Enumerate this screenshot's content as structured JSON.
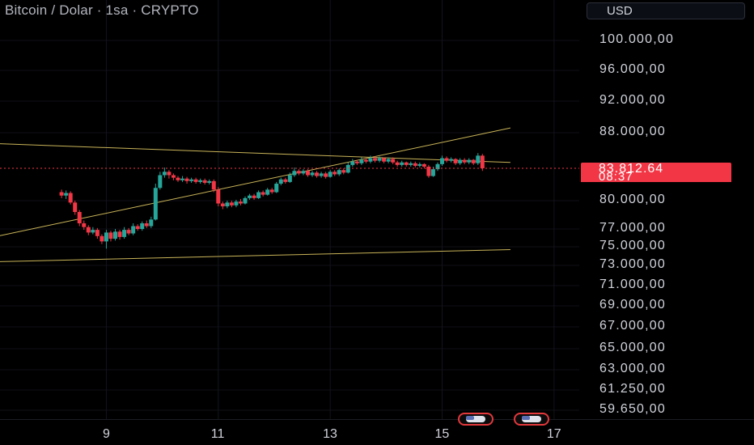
{
  "header": {
    "title": "Bitcoin / Dolar · 1sa · CRYPTO",
    "currency": "USD"
  },
  "current_price": {
    "label": "83.812,64",
    "countdown": "08:37",
    "value": 83812.64,
    "color": "#f23645"
  },
  "colors": {
    "up": "#26a69a",
    "down": "#f23645",
    "trendline": "#c9b458",
    "background": "#000000"
  },
  "events": [
    {
      "icon": "us-flag-icon",
      "x": 15.6
    },
    {
      "icon": "us-flag-icon",
      "x": 16.6
    }
  ],
  "chart_data": {
    "type": "candlestick",
    "y_axis_labels": [
      {
        "label": "100.000,00",
        "value": 100000
      },
      {
        "label": "96.000,00",
        "value": 96000
      },
      {
        "label": "92.000,00",
        "value": 92000
      },
      {
        "label": "88.000,00",
        "value": 88000
      },
      {
        "label": "80.000,00",
        "value": 80000
      },
      {
        "label": "77.000,00",
        "value": 77000
      },
      {
        "label": "75.000,00",
        "value": 75000
      },
      {
        "label": "73.000,00",
        "value": 73000
      },
      {
        "label": "71.000,00",
        "value": 71000
      },
      {
        "label": "69.000,00",
        "value": 69000
      },
      {
        "label": "67.000,00",
        "value": 67000
      },
      {
        "label": "65.000,00",
        "value": 65000
      },
      {
        "label": "63.000,00",
        "value": 63000
      },
      {
        "label": "61.250,00",
        "value": 61250
      },
      {
        "label": "59.650,00",
        "value": 59650
      }
    ],
    "x_axis_labels": [
      {
        "label": "9",
        "value": 9
      },
      {
        "label": "11",
        "value": 11
      },
      {
        "label": "13",
        "value": 13
      },
      {
        "label": "15",
        "value": 15
      },
      {
        "label": "17",
        "value": 17
      }
    ],
    "price_line": 83812.64,
    "candles": [
      [
        8.2,
        81000,
        80600,
        81300,
        80300
      ],
      [
        8.28,
        80600,
        80900,
        81200,
        80200
      ],
      [
        8.36,
        80900,
        79800,
        81100,
        79600
      ],
      [
        8.44,
        79800,
        78800,
        80000,
        78500
      ],
      [
        8.52,
        78800,
        77600,
        79000,
        77300
      ],
      [
        8.6,
        77600,
        77200,
        77900,
        76900
      ],
      [
        8.68,
        77200,
        76600,
        77400,
        76300
      ],
      [
        8.76,
        76600,
        76900,
        77200,
        76400
      ],
      [
        8.84,
        76900,
        76200,
        77100,
        75900
      ],
      [
        8.92,
        76200,
        75600,
        76400,
        75300
      ],
      [
        9.0,
        75600,
        76600,
        76900,
        74800
      ],
      [
        9.08,
        76600,
        75900,
        76800,
        75600
      ],
      [
        9.16,
        75900,
        76700,
        77000,
        75700
      ],
      [
        9.24,
        76700,
        76100,
        76900,
        75800
      ],
      [
        9.32,
        76100,
        76900,
        77200,
        75900
      ],
      [
        9.4,
        76900,
        76500,
        77100,
        76300
      ],
      [
        9.48,
        76500,
        77300,
        77600,
        76300
      ],
      [
        9.56,
        77300,
        77000,
        77500,
        76800
      ],
      [
        9.64,
        77000,
        77600,
        77800,
        76800
      ],
      [
        9.72,
        77600,
        77300,
        77900,
        77100
      ],
      [
        9.8,
        77300,
        78000,
        78300,
        77100
      ],
      [
        9.88,
        78000,
        81500,
        82000,
        77900
      ],
      [
        9.96,
        81500,
        83000,
        83400,
        81300
      ],
      [
        10.04,
        83000,
        83400,
        83900,
        82700
      ],
      [
        10.12,
        83400,
        83000,
        83600,
        82600
      ],
      [
        10.2,
        83000,
        82700,
        83200,
        82400
      ],
      [
        10.28,
        82700,
        82400,
        82900,
        82200
      ],
      [
        10.36,
        82400,
        82600,
        82900,
        82200
      ],
      [
        10.44,
        82600,
        82300,
        82800,
        82000
      ],
      [
        10.52,
        82300,
        82500,
        82700,
        82100
      ],
      [
        10.6,
        82500,
        82200,
        82700,
        82000
      ],
      [
        10.68,
        82200,
        82400,
        82600,
        82000
      ],
      [
        10.76,
        82400,
        82100,
        82600,
        81900
      ],
      [
        10.84,
        82100,
        82300,
        82500,
        81900
      ],
      [
        10.92,
        82300,
        81300,
        82500,
        81000
      ],
      [
        11.0,
        81300,
        79700,
        81600,
        79400
      ],
      [
        11.08,
        79700,
        79400,
        79900,
        79100
      ],
      [
        11.16,
        79400,
        79800,
        80000,
        79200
      ],
      [
        11.24,
        79800,
        79500,
        80000,
        79300
      ],
      [
        11.32,
        79500,
        79900,
        80100,
        79300
      ],
      [
        11.4,
        79900,
        79700,
        80200,
        79500
      ],
      [
        11.48,
        79700,
        80300,
        80500,
        79600
      ],
      [
        11.56,
        80300,
        80600,
        80800,
        80100
      ],
      [
        11.64,
        80600,
        80300,
        80800,
        80100
      ],
      [
        11.72,
        80300,
        81000,
        81200,
        80200
      ],
      [
        11.8,
        81000,
        80700,
        81200,
        80500
      ],
      [
        11.88,
        80700,
        81300,
        81500,
        80600
      ],
      [
        11.96,
        81300,
        81000,
        81500,
        80800
      ],
      [
        12.04,
        81000,
        82000,
        82200,
        80900
      ],
      [
        12.12,
        82000,
        82500,
        82700,
        81800
      ],
      [
        12.2,
        82500,
        82200,
        82700,
        82000
      ],
      [
        12.28,
        82200,
        83000,
        83300,
        82100
      ],
      [
        12.36,
        83000,
        83500,
        83900,
        82800
      ],
      [
        12.44,
        83500,
        83200,
        83700,
        83000
      ],
      [
        12.52,
        83200,
        83500,
        83700,
        83000
      ],
      [
        12.6,
        83500,
        83000,
        83700,
        82800
      ],
      [
        12.68,
        83000,
        83300,
        83500,
        82800
      ],
      [
        12.76,
        83300,
        82900,
        83500,
        82700
      ],
      [
        12.84,
        82900,
        83200,
        83400,
        82700
      ],
      [
        12.92,
        83200,
        82800,
        83400,
        82600
      ],
      [
        13.0,
        82800,
        83400,
        83600,
        82700
      ],
      [
        13.08,
        83400,
        83100,
        83600,
        82900
      ],
      [
        13.16,
        83100,
        83600,
        83800,
        82900
      ],
      [
        13.24,
        83600,
        83300,
        83800,
        83100
      ],
      [
        13.32,
        83300,
        84200,
        84500,
        83200
      ],
      [
        13.4,
        84200,
        84600,
        84900,
        84000
      ],
      [
        13.48,
        84600,
        84400,
        84800,
        84200
      ],
      [
        13.56,
        84400,
        84800,
        85100,
        84200
      ],
      [
        13.64,
        84800,
        84600,
        85000,
        84400
      ],
      [
        13.72,
        84600,
        85000,
        85300,
        84400
      ],
      [
        13.8,
        85000,
        84700,
        85200,
        84500
      ],
      [
        13.88,
        84700,
        85000,
        85200,
        84500
      ],
      [
        13.96,
        85000,
        84600,
        85100,
        84400
      ],
      [
        14.04,
        84600,
        84900,
        85100,
        84400
      ],
      [
        14.12,
        84900,
        84500,
        85100,
        84300
      ],
      [
        14.2,
        84500,
        84200,
        84700,
        84000
      ],
      [
        14.28,
        84200,
        84500,
        84700,
        84000
      ],
      [
        14.36,
        84500,
        84200,
        84600,
        84000
      ],
      [
        14.44,
        84200,
        84400,
        84600,
        84000
      ],
      [
        14.52,
        84400,
        84100,
        84600,
        83900
      ],
      [
        14.6,
        84100,
        84300,
        84500,
        83900
      ],
      [
        14.68,
        84300,
        84000,
        84400,
        83800
      ],
      [
        14.76,
        84000,
        82900,
        84200,
        82700
      ],
      [
        14.84,
        82900,
        83700,
        84000,
        82800
      ],
      [
        14.92,
        83700,
        84300,
        84500,
        83500
      ],
      [
        15.0,
        84300,
        85000,
        85300,
        84100
      ],
      [
        15.08,
        85000,
        84700,
        85200,
        84500
      ],
      [
        15.16,
        84700,
        84900,
        85100,
        84500
      ],
      [
        15.24,
        84900,
        84400,
        85000,
        84200
      ],
      [
        15.32,
        84400,
        84800,
        85000,
        84200
      ],
      [
        15.4,
        84800,
        84500,
        85000,
        84300
      ],
      [
        15.48,
        84500,
        84800,
        85000,
        84300
      ],
      [
        15.56,
        84800,
        84400,
        84900,
        84200
      ],
      [
        15.64,
        84400,
        85300,
        85600,
        84200
      ],
      [
        15.72,
        85300,
        83812.64,
        85500,
        83500
      ]
    ],
    "trendlines": [
      {
        "name": "upper-resistance",
        "x1": 7.1,
        "y1": 86700,
        "x2": 16.22,
        "y2": 84500
      },
      {
        "name": "rising-support",
        "x1": 7.1,
        "y1": 76250,
        "x2": 16.22,
        "y2": 88600
      },
      {
        "name": "lower-support",
        "x1": 7.1,
        "y1": 73400,
        "x2": 16.22,
        "y2": 74700
      }
    ],
    "grid": true,
    "xlim": [
      7.1,
      17.45
    ],
    "ylim": [
      59000,
      102000
    ]
  }
}
